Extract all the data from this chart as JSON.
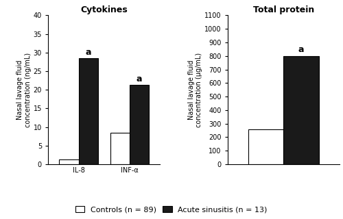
{
  "cytokines_title": "Cytokines",
  "protein_title": "Total protein",
  "cytokines_ylabel": "Nasal lavage fluid\nconcentration (ng/mL)",
  "protein_ylabel": "Nasal lavage fluid\nconcentration (μg/mL)",
  "cytokines_categories": [
    "IL-8",
    "INF-α"
  ],
  "cytokines_controls": [
    1.2,
    8.5
  ],
  "cytokines_acute": [
    28.5,
    21.3
  ],
  "cytokines_ylim": [
    0,
    40
  ],
  "cytokines_yticks": [
    0,
    5,
    10,
    15,
    20,
    25,
    30,
    35,
    40
  ],
  "protein_controls": [
    260
  ],
  "protein_acute": [
    800
  ],
  "protein_ylim": [
    0,
    1100
  ],
  "protein_yticks": [
    0,
    100,
    200,
    300,
    400,
    500,
    600,
    700,
    800,
    900,
    1000,
    1100
  ],
  "bar_width": 0.38,
  "color_controls": "#ffffff",
  "color_acute": "#1a1a1a",
  "edgecolor": "#000000",
  "legend_controls": "Controls (n = 89)",
  "legend_acute": "Acute sinusitis (n = 13)",
  "annotation": "a",
  "title_fontsize": 9,
  "label_fontsize": 7,
  "tick_fontsize": 7,
  "legend_fontsize": 8,
  "annot_fontsize": 9
}
